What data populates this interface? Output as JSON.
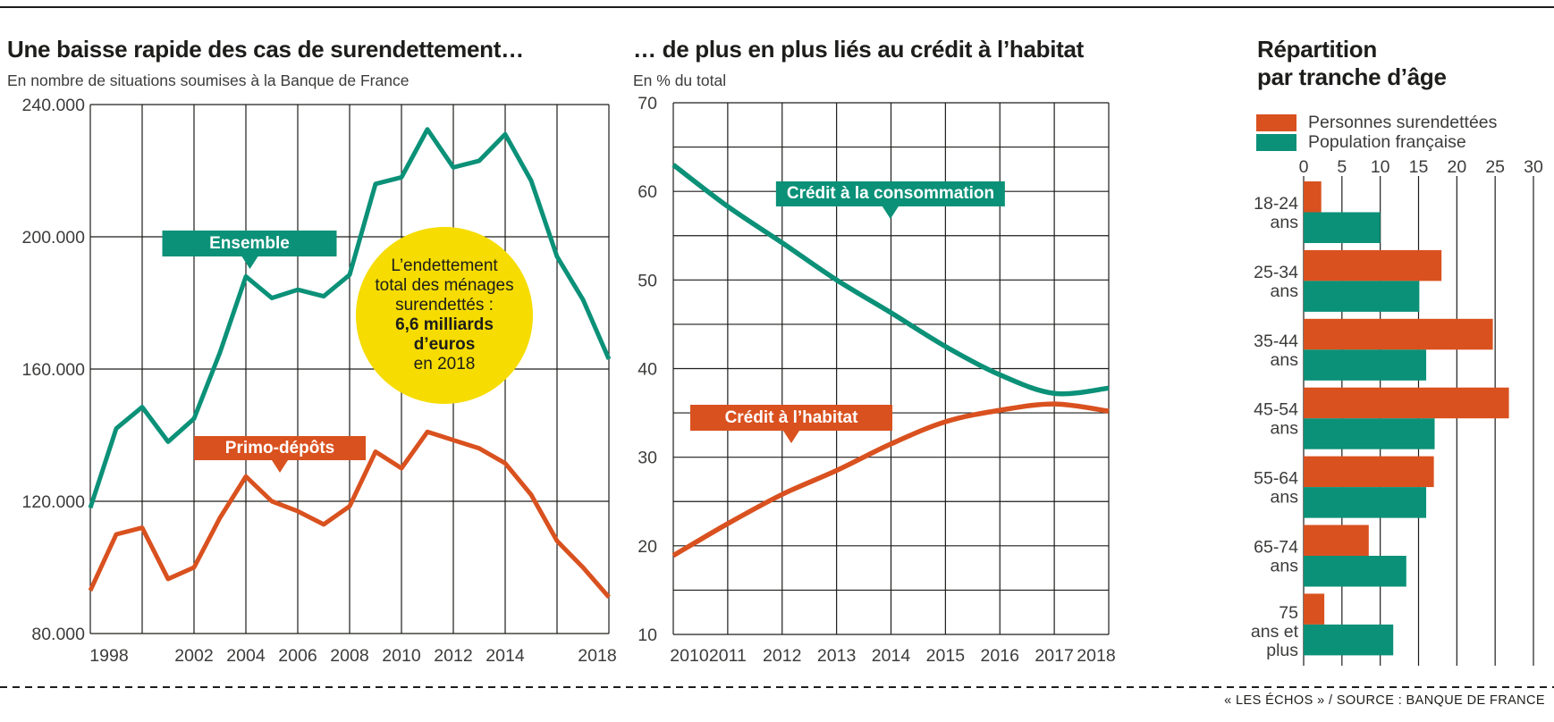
{
  "footer": {
    "source": "« LES ÉCHOS » / SOURCE : BANQUE DE FRANCE"
  },
  "colors": {
    "teal": "#0b9178",
    "orange": "#d9511f",
    "yellow": "#f6dc00",
    "grid": "#1d1d1b",
    "tick_text": "#3c3c3b"
  },
  "legend": {
    "surendettees": "Personnes surendettées",
    "population": "Population française"
  },
  "annotations": {
    "ensemble": "Ensemble",
    "primo": "Primo-dépôts",
    "conso": "Crédit à la consommation",
    "habitat": "Crédit à l’habitat",
    "bubble_lines": [
      "L’endettement",
      "total des ménages",
      "surendettés :",
      "6,6 milliards",
      "d’euros",
      "en 2018"
    ]
  },
  "chart_data": [
    {
      "type": "line",
      "title": "Une baisse rapide des cas de surendettement…",
      "subtitle": "En nombre de situations soumises à la Banque de France",
      "unit": "milliers de situations",
      "x": [
        1998,
        1999,
        2000,
        2001,
        2002,
        2003,
        2004,
        2005,
        2006,
        2007,
        2008,
        2009,
        2010,
        2011,
        2012,
        2013,
        2014,
        2015,
        2016,
        2017,
        2018
      ],
      "x_tick_labels": [
        1998,
        2002,
        2004,
        2006,
        2008,
        2010,
        2012,
        2014,
        2018
      ],
      "ylim": [
        80,
        240
      ],
      "y_ticks": [
        {
          "label": "240.000",
          "value": 240
        },
        {
          "label": "200.000",
          "value": 200
        },
        {
          "label": "160.000",
          "value": 160
        },
        {
          "label": "120.000",
          "value": 120
        },
        {
          "label": "80.000",
          "value": 80
        }
      ],
      "series": [
        {
          "id": "ensemble",
          "name": "Ensemble",
          "color": "#0b9178",
          "values": [
            118,
            142,
            148.5,
            138,
            145,
            165,
            188,
            181.5,
            184,
            182,
            188.5,
            216,
            218,
            232.5,
            221,
            223,
            231,
            217,
            194,
            181,
            163
          ]
        },
        {
          "id": "primo",
          "name": "Primo-dépôts",
          "color": "#d9511f",
          "values": [
            93,
            110,
            112,
            96.5,
            100,
            115,
            127.5,
            120,
            117,
            113,
            118.5,
            135,
            130,
            141,
            138.5,
            136,
            131.5,
            122,
            108,
            100,
            91
          ]
        }
      ],
      "annotation": "L’endettement total des ménages surendettés : 6,6 milliards d’euros en 2018"
    },
    {
      "type": "line",
      "title": "… de plus en plus liés au crédit à l’habitat",
      "subtitle": "En % du total",
      "unit": "%",
      "x": [
        2010,
        2011,
        2012,
        2013,
        2014,
        2015,
        2016,
        2017,
        2018
      ],
      "ylim": [
        10,
        70
      ],
      "y_ticks": [
        70,
        60,
        50,
        40,
        30,
        20,
        10
      ],
      "grid_step_y": 5,
      "series": [
        {
          "id": "conso",
          "name": "Crédit à la consommation",
          "color": "#0b9178",
          "values": [
            63,
            58.3,
            54.2,
            50,
            46.3,
            42.5,
            39.3,
            37.2,
            37.8
          ]
        },
        {
          "id": "habitat",
          "name": "Crédit à l’habitat",
          "color": "#d9511f",
          "values": [
            18.9,
            22.5,
            25.8,
            28.5,
            31.5,
            34,
            35.3,
            36,
            35.2
          ]
        }
      ]
    },
    {
      "type": "bar",
      "orientation": "horizontal",
      "title": "Répartition par tranche d’âge",
      "title_lines": [
        "Répartition",
        "par tranche d’âge"
      ],
      "unit": "%",
      "categories": [
        "18-24 ans",
        "25-34 ans",
        "35-44 ans",
        "45-54 ans",
        "55-64 ans",
        "65-74 ans",
        "75 ans et plus"
      ],
      "category_label_lines": [
        [
          "18-24",
          "ans"
        ],
        [
          "25-34",
          "ans"
        ],
        [
          "35-44",
          "ans"
        ],
        [
          "45-54",
          "ans"
        ],
        [
          "55-64",
          "ans"
        ],
        [
          "65-74",
          "ans"
        ],
        [
          "75",
          "ans et",
          "plus"
        ]
      ],
      "xlim": [
        0,
        30
      ],
      "x_ticks": [
        0,
        5,
        10,
        15,
        20,
        25,
        30
      ],
      "legend_position": "top",
      "series": [
        {
          "id": "surendettees",
          "name": "Personnes surendettées",
          "color": "#d9511f",
          "values": [
            2.3,
            18,
            24.7,
            26.8,
            17,
            8.5,
            2.7
          ]
        },
        {
          "id": "population",
          "name": "Population française",
          "color": "#0b9178",
          "values": [
            10,
            15.1,
            16,
            17.1,
            16,
            13.4,
            11.7
          ]
        }
      ]
    }
  ]
}
